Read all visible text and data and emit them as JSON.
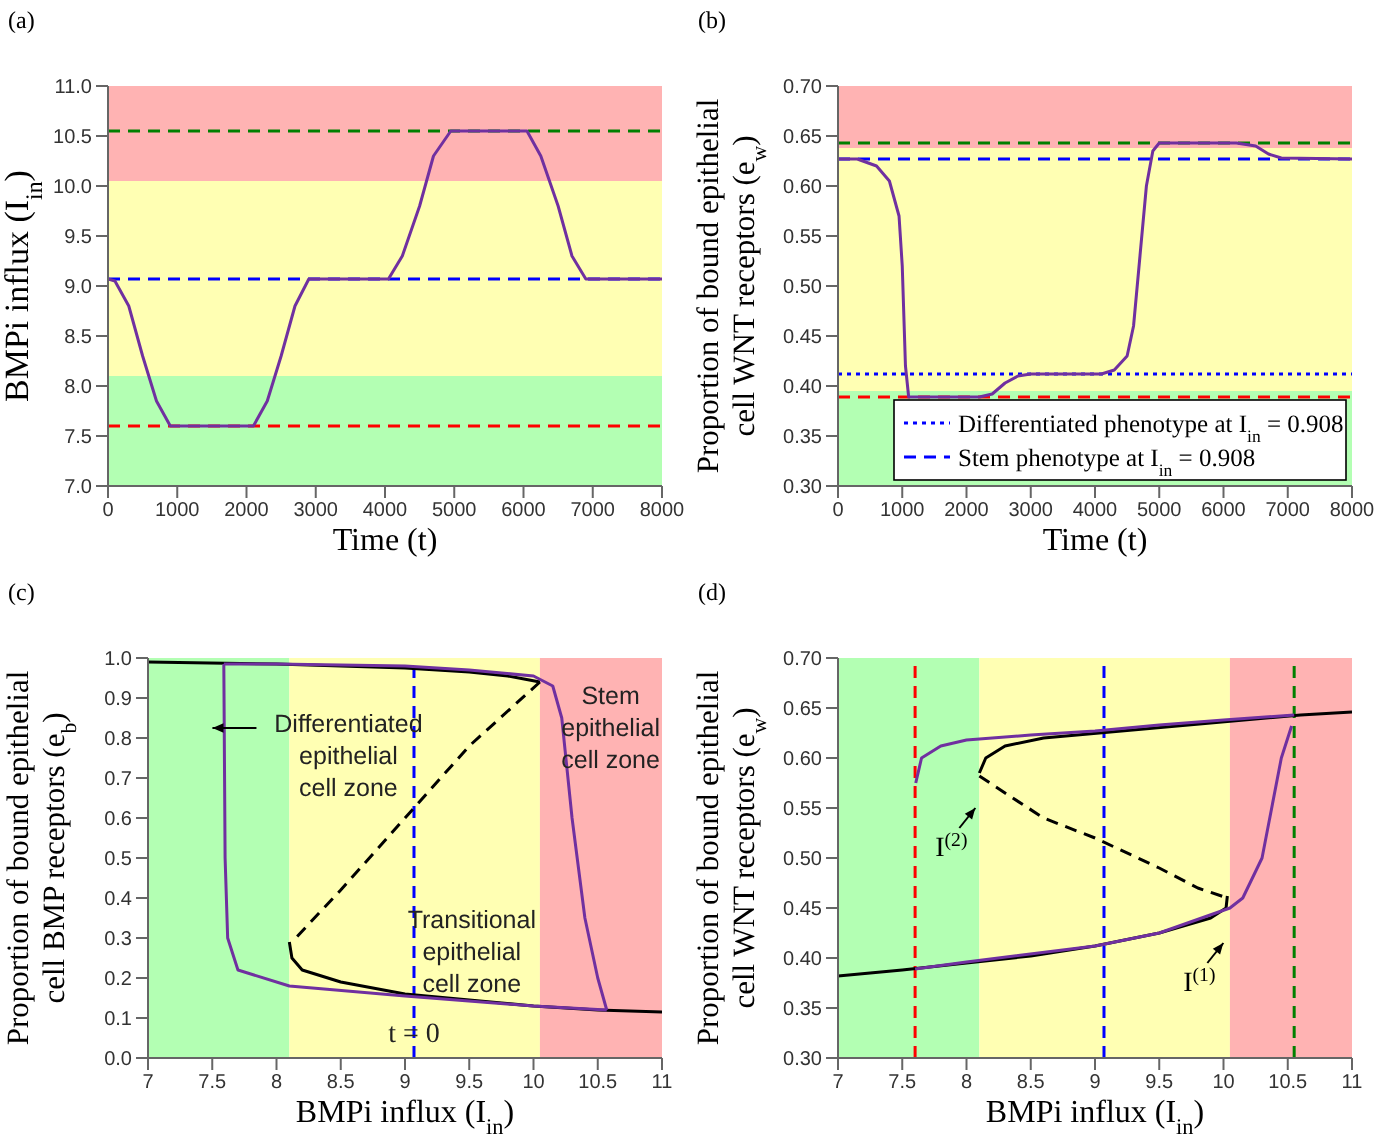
{
  "chart_data": [
    {
      "type": "line",
      "title": "(a)",
      "xlabel": "Time (t)",
      "ylabel": "BMPi influx (I$_{in}$)",
      "xlim": [
        0,
        8000
      ],
      "ylim": [
        7,
        11
      ],
      "xticks": [
        0,
        1000,
        2000,
        3000,
        4000,
        5000,
        6000,
        7000,
        8000
      ],
      "yticks": [
        {
          "value": 7,
          "label": "7.0"
        },
        7.5,
        {
          "value": 8,
          "label": "8.0"
        },
        8.5,
        {
          "value": 9,
          "label": "9.0"
        },
        9.5,
        {
          "value": 10,
          "label": "10.0"
        },
        10.5,
        {
          "value": 11,
          "label": "11.0"
        }
      ],
      "bands": [
        {
          "axis": "y",
          "from": 7,
          "to": 8.1,
          "color": "#b3ffb3"
        },
        {
          "axis": "y",
          "from": 8.1,
          "to": 10.05,
          "color": "#ffffb3"
        },
        {
          "axis": "y",
          "from": 10.05,
          "to": 11,
          "color": "#ffb3b3"
        }
      ],
      "ref_lines": [
        {
          "axis": "y",
          "value": 10.55,
          "color": "#008000",
          "line_style": "dashed"
        },
        {
          "axis": "y",
          "value": 9.07,
          "color": "#0000ff",
          "line_style": "dashed"
        },
        {
          "axis": "y",
          "value": 7.6,
          "color": "#ff0000",
          "line_style": "dashed"
        }
      ],
      "series": [
        {
          "color": "#7030a0",
          "x": [
            0,
            100,
            300,
            500,
            700,
            900,
            2100,
            2300,
            2500,
            2700,
            2900,
            4050,
            4250,
            4500,
            4700,
            4950,
            6050,
            6250,
            6500,
            6700,
            6900,
            8000
          ],
          "values": [
            9.07,
            9.05,
            8.8,
            8.3,
            7.85,
            7.6,
            7.6,
            7.85,
            8.3,
            8.8,
            9.07,
            9.07,
            9.3,
            9.8,
            10.3,
            10.55,
            10.55,
            10.3,
            9.8,
            9.3,
            9.07,
            9.07
          ]
        }
      ]
    },
    {
      "type": "line",
      "title": "(b)",
      "xlabel": "Time (t)",
      "ylabel": "Proportion of bound epithelial cell WNT receptors (e$_{w}$)",
      "xlim": [
        0,
        8000
      ],
      "ylim": [
        0.3,
        0.7
      ],
      "xticks": [
        0,
        1000,
        2000,
        3000,
        4000,
        5000,
        6000,
        7000,
        8000
      ],
      "yticks": [
        {
          "value": 0.3,
          "label": "0.30"
        },
        0.35,
        {
          "value": 0.4,
          "label": "0.40"
        },
        0.45,
        {
          "value": 0.5,
          "label": "0.50"
        },
        0.55,
        {
          "value": 0.6,
          "label": "0.60"
        },
        0.65,
        {
          "value": 0.7,
          "label": "0.70"
        }
      ],
      "legend": "bottom right",
      "bands": [
        {
          "axis": "y",
          "from": 0.3,
          "to": 0.395,
          "color": "#b3ffb3"
        },
        {
          "axis": "y",
          "from": 0.395,
          "to": 0.638,
          "color": "#ffffb3"
        },
        {
          "axis": "y",
          "from": 0.638,
          "to": 0.7,
          "color": "#ffb3b3"
        }
      ],
      "ref_lines": [
        {
          "axis": "y",
          "value": 0.643,
          "color": "#008000",
          "line_style": "dashed"
        },
        {
          "axis": "y",
          "value": 0.389,
          "color": "#ff0000",
          "line_style": "dashed"
        }
      ],
      "series": [
        {
          "name": "Differentiated phenotype at I$_{in}$ = 0.908",
          "color": "#0000ff",
          "line_style": "dotted",
          "x": [
            0,
            8000
          ],
          "values": [
            0.412,
            0.412
          ]
        },
        {
          "name": "Stem phenotype at I$_{in}$ = 0.908",
          "color": "#0000ff",
          "line_style": "dashed",
          "x": [
            0,
            8000
          ],
          "values": [
            0.627,
            0.627
          ]
        },
        {
          "color": "#7030a0",
          "x": [
            0,
            300,
            600,
            800,
            950,
            1000,
            1050,
            1100,
            2200,
            2400,
            2600,
            2800,
            3000,
            4100,
            4300,
            4500,
            4600,
            4700,
            4800,
            4900,
            5000,
            6200,
            6500,
            6700,
            6900,
            8000
          ],
          "values": [
            0.627,
            0.627,
            0.62,
            0.605,
            0.57,
            0.52,
            0.42,
            0.389,
            0.389,
            0.392,
            0.403,
            0.41,
            0.412,
            0.412,
            0.416,
            0.43,
            0.46,
            0.53,
            0.6,
            0.635,
            0.643,
            0.643,
            0.64,
            0.632,
            0.628,
            0.627
          ]
        }
      ]
    },
    {
      "type": "line",
      "title": "(c)",
      "xlabel": "BMPi influx (I$_{in}$)",
      "ylabel": "Proportion of bound epithelial cell BMP receptors (e$_{b}$)",
      "xlim": [
        7,
        11
      ],
      "ylim": [
        0,
        1
      ],
      "xticks": [
        7,
        7.5,
        8,
        8.5,
        9,
        9.5,
        10,
        10.5,
        11
      ],
      "yticks": [
        {
          "value": 0,
          "label": "0.0"
        },
        0.1,
        0.2,
        0.3,
        0.4,
        0.5,
        0.6,
        0.7,
        0.8,
        0.9,
        {
          "value": 1,
          "label": "1.0"
        }
      ],
      "bands": [
        {
          "axis": "x",
          "from": 7,
          "to": 8.1,
          "color": "#b3ffb3"
        },
        {
          "axis": "x",
          "from": 8.1,
          "to": 10.05,
          "color": "#ffffb3"
        },
        {
          "axis": "x",
          "from": 10.05,
          "to": 11,
          "color": "#ffb3b3"
        }
      ],
      "ref_lines": [
        {
          "axis": "x",
          "value": 9.07,
          "color": "#0000ff",
          "line_style": "dashed"
        }
      ],
      "annotations": [
        "Differentiated epithelial cell zone",
        "Stem epithelial cell zone",
        "Transitional epithelial cell zone",
        {
          "text": "t = 0",
          "x": 9.07,
          "y": 0.155
        }
      ],
      "series": [
        {
          "color": "#000000",
          "line_style": "solid",
          "x": [
            7,
            8,
            9,
            9.5,
            9.8,
            10.05
          ],
          "values": [
            0.99,
            0.985,
            0.975,
            0.965,
            0.955,
            0.94
          ]
        },
        {
          "color": "#000000",
          "line_style": "dashed",
          "x": [
            10.05,
            9.5,
            9,
            8.5,
            8.12
          ],
          "values": [
            0.94,
            0.78,
            0.6,
            0.42,
            0.29
          ]
        },
        {
          "color": "#000000",
          "line_style": "solid",
          "x": [
            8.1,
            8.12,
            8.2,
            8.5,
            9,
            9.5,
            10,
            10.5,
            11
          ],
          "values": [
            0.29,
            0.25,
            0.22,
            0.19,
            0.16,
            0.145,
            0.13,
            0.12,
            0.115
          ]
        },
        {
          "color": "#7030a0",
          "line_style": "solid",
          "x": [
            7.59,
            7.6,
            7.62,
            7.7,
            8.1,
            9,
            10,
            10.57
          ],
          "values": [
            0.985,
            0.5,
            0.3,
            0.22,
            0.18,
            0.155,
            0.13,
            0.12
          ]
        },
        {
          "color": "#7030a0",
          "line_style": "solid",
          "x": [
            7.59,
            8,
            9,
            9.5,
            10,
            10.15,
            10.22,
            10.3,
            10.4,
            10.5,
            10.57
          ],
          "values": [
            0.985,
            0.985,
            0.98,
            0.97,
            0.955,
            0.93,
            0.85,
            0.6,
            0.35,
            0.2,
            0.12
          ]
        }
      ]
    },
    {
      "type": "line",
      "title": "(d)",
      "xlabel": "BMPi influx (I$_{in}$)",
      "ylabel": "Proportion of bound epithelial cell WNT receptors (e$_{w}$)",
      "xlim": [
        7,
        11
      ],
      "ylim": [
        0.3,
        0.7
      ],
      "xticks": [
        7,
        7.5,
        8,
        8.5,
        9,
        9.5,
        10,
        10.5,
        11
      ],
      "yticks": [
        {
          "value": 0.3,
          "label": "0.30"
        },
        0.35,
        {
          "value": 0.4,
          "label": "0.40"
        },
        0.45,
        {
          "value": 0.5,
          "label": "0.50"
        },
        0.55,
        {
          "value": 0.6,
          "label": "0.60"
        },
        0.65,
        {
          "value": 0.7,
          "label": "0.70"
        }
      ],
      "bands": [
        {
          "axis": "x",
          "from": 7,
          "to": 8.1,
          "color": "#b3ffb3"
        },
        {
          "axis": "x",
          "from": 8.1,
          "to": 10.05,
          "color": "#ffffb3"
        },
        {
          "axis": "x",
          "from": 10.05,
          "to": 11,
          "color": "#ffb3b3"
        }
      ],
      "ref_lines": [
        {
          "axis": "x",
          "value": 7.6,
          "color": "#ff0000",
          "line_style": "dashed"
        },
        {
          "axis": "x",
          "value": 9.07,
          "color": "#0000ff",
          "line_style": "dashed"
        },
        {
          "axis": "x",
          "value": 10.55,
          "color": "#008000",
          "line_style": "dashed"
        }
      ],
      "annotations": [
        {
          "text": "I$^{(2)}$",
          "x": 8.1,
          "y": 0.59
        },
        {
          "text": "I$^{(1)}$",
          "x": 10.03,
          "y": 0.455
        }
      ],
      "series": [
        {
          "color": "#000000",
          "line_style": "solid",
          "x": [
            8.1,
            8.15,
            8.3,
            8.6,
            10.6,
            11
          ],
          "values": [
            0.585,
            0.6,
            0.612,
            0.62,
            0.643,
            0.646
          ]
        },
        {
          "color": "#000000",
          "line_style": "dashed",
          "x": [
            8.1,
            8.3,
            8.6,
            9,
            9.5,
            9.8,
            10.03
          ],
          "values": [
            0.582,
            0.565,
            0.54,
            0.52,
            0.49,
            0.47,
            0.46
          ]
        },
        {
          "color": "#000000",
          "line_style": "solid",
          "x": [
            10.03,
            10.02,
            9.9,
            9.5,
            9,
            8.5,
            8,
            7.5,
            7
          ],
          "values": [
            0.462,
            0.45,
            0.44,
            0.425,
            0.412,
            0.402,
            0.395,
            0.388,
            0.382
          ]
        },
        {
          "color": "#7030a0",
          "line_style": "solid",
          "x": [
            7.605,
            7.65,
            7.8,
            8,
            8.5,
            9,
            9.5,
            10,
            10.55
          ],
          "values": [
            0.575,
            0.6,
            0.612,
            0.618,
            0.623,
            0.627,
            0.633,
            0.638,
            0.643
          ]
        },
        {
          "color": "#7030a0",
          "line_style": "solid",
          "x": [
            7.6,
            8,
            9,
            9.5,
            10.05,
            10.15,
            10.3,
            10.45,
            10.53
          ],
          "values": [
            0.389,
            0.396,
            0.412,
            0.425,
            0.45,
            0.46,
            0.5,
            0.6,
            0.632
          ]
        }
      ]
    }
  ]
}
